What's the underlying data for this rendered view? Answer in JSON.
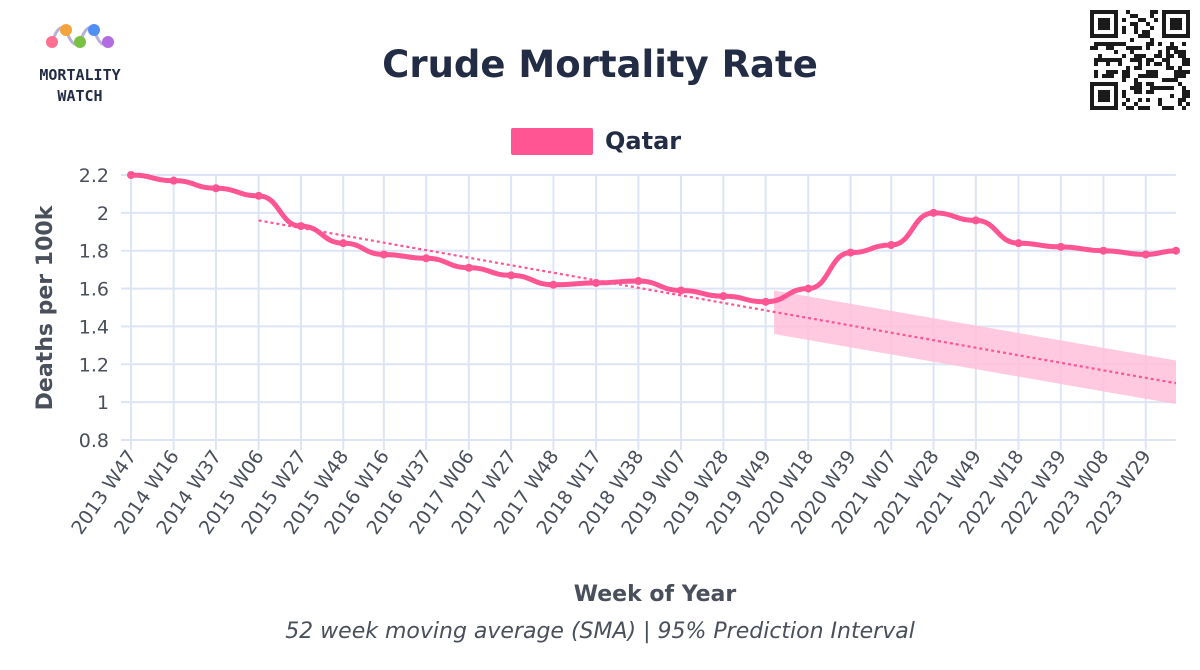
{
  "brand": {
    "name_line1": "MORTALITY",
    "name_line2": "WATCH"
  },
  "qr_icon": "qr-code-icon",
  "colors": {
    "series": "#ff5693",
    "trend": "#ff5693",
    "interval": "#ffc0d9",
    "grid": "#dde4f5",
    "title": "#232c45",
    "axis_text": "#4a4f5c",
    "logo_dots": [
      "#ff6f91",
      "#f4a43b",
      "#7ac143",
      "#4f8ff7",
      "#b36be0"
    ]
  },
  "chart_data": {
    "type": "line",
    "title": "Crude Mortality Rate",
    "xlabel": "Week of Year",
    "ylabel": "Deaths per 100k",
    "caption": "52 week moving average (SMA) | 95% Prediction Interval",
    "ylim": [
      0.8,
      2.2
    ],
    "yticks": [
      0.8,
      1,
      1.2,
      1.4,
      1.6,
      1.8,
      2,
      2.2
    ],
    "x_ticks": [
      "2013 W47",
      "2014 W16",
      "2014 W37",
      "2015 W06",
      "2015 W27",
      "2015 W48",
      "2016 W16",
      "2016 W37",
      "2017 W06",
      "2017 W27",
      "2017 W48",
      "2018 W17",
      "2018 W38",
      "2019 W07",
      "2019 W28",
      "2019 W49",
      "2020 W18",
      "2020 W39",
      "2021 W07",
      "2021 W28",
      "2021 W49",
      "2022 W18",
      "2022 W39",
      "2023 W08",
      "2023 W29"
    ],
    "legend": {
      "placement": "top-center"
    },
    "series": [
      {
        "name": "Qatar",
        "points": [
          [
            "2013 W47",
            2.2
          ],
          [
            "2014 W16",
            2.17
          ],
          [
            "2014 W37",
            2.13
          ],
          [
            "2015 W06",
            2.09
          ],
          [
            "2015 W27",
            1.93
          ],
          [
            "2015 W48",
            1.84
          ],
          [
            "2016 W16",
            1.78
          ],
          [
            "2016 W37",
            1.76
          ],
          [
            "2017 W06",
            1.71
          ],
          [
            "2017 W27",
            1.67
          ],
          [
            "2017 W48",
            1.62
          ],
          [
            "2018 W17",
            1.63
          ],
          [
            "2018 W38",
            1.64
          ],
          [
            "2019 W07",
            1.59
          ],
          [
            "2019 W28",
            1.56
          ],
          [
            "2019 W49",
            1.53
          ],
          [
            "2020 W18",
            1.6
          ],
          [
            "2020 W39",
            1.79
          ],
          [
            "2021 W07",
            1.83
          ],
          [
            "2021 W28",
            2.0
          ],
          [
            "2021 W49",
            1.96
          ],
          [
            "2022 W18",
            1.84
          ],
          [
            "2022 W39",
            1.82
          ],
          [
            "2023 W08",
            1.8
          ],
          [
            "2023 W29",
            1.78
          ],
          [
            "2023 W50",
            1.8
          ]
        ]
      }
    ],
    "trend": {
      "from": [
        "2015 W06",
        1.96
      ],
      "to": [
        "2023 W50",
        1.1
      ]
    },
    "prediction_interval": {
      "start": "2020 W01",
      "end": "2023 W50",
      "lower": [
        1.36,
        0.99
      ],
      "upper": [
        1.59,
        1.22
      ]
    },
    "grid": true
  }
}
